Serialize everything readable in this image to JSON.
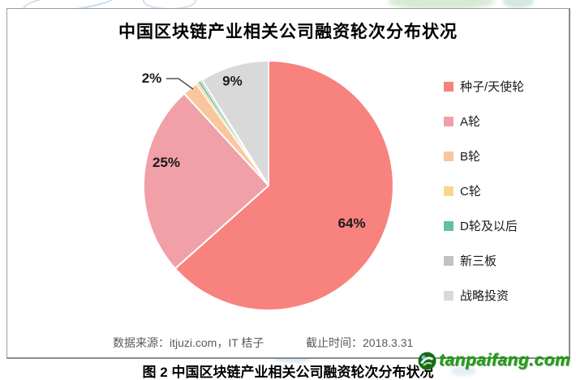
{
  "chart": {
    "title": "中国区块链产业相关公司融资轮次分布状况"
  },
  "chart_data": {
    "type": "pie",
    "title": "中国区块链产业相关公司融资轮次分布状况",
    "categories": [
      "种子/天使轮",
      "A轮",
      "B轮",
      "C轮",
      "D轮及以后",
      "新三板",
      "战略投资"
    ],
    "values": [
      64,
      25,
      2,
      0.3,
      0.3,
      0.3,
      9
    ],
    "displayed_labels": [
      "64%",
      "25%",
      "2%",
      "",
      "",
      "",
      "9%"
    ],
    "colors": [
      "#F8827D",
      "#F0A0A6",
      "#FAC69E",
      "#F8D88B",
      "#63BEA9",
      "#C2C2C2",
      "#D9D9D9"
    ],
    "legend_position": "right",
    "start_angle": "top, clockwise",
    "source": "数据来源：itjuzi.com，IT 桔子",
    "as_of": "截止时间：2018.3.31"
  },
  "footer": {
    "source": "数据来源：itjuzi.com，IT 桔子",
    "deadline": "截止时间：2018.3.31"
  },
  "caption": "图 2  中国区块链产业相关公司融资轮次分布状况",
  "watermark": {
    "site": "tanpaifang.com"
  }
}
